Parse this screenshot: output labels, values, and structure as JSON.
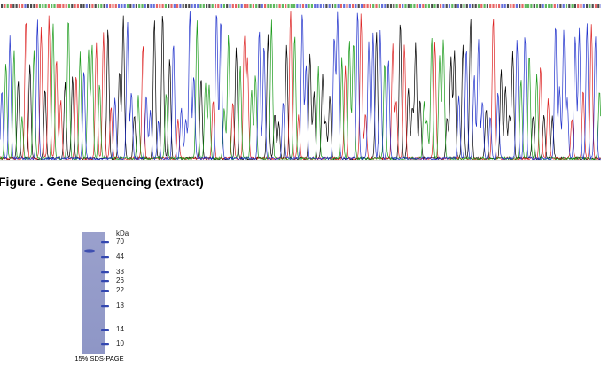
{
  "caption": "Figure . Gene Sequencing (extract)",
  "gel": {
    "unit": "kDa",
    "markers": [
      "70",
      "44",
      "33",
      "26",
      "22",
      "18",
      "14",
      "10"
    ],
    "footer": "15% SDS-PAGE"
  }
}
